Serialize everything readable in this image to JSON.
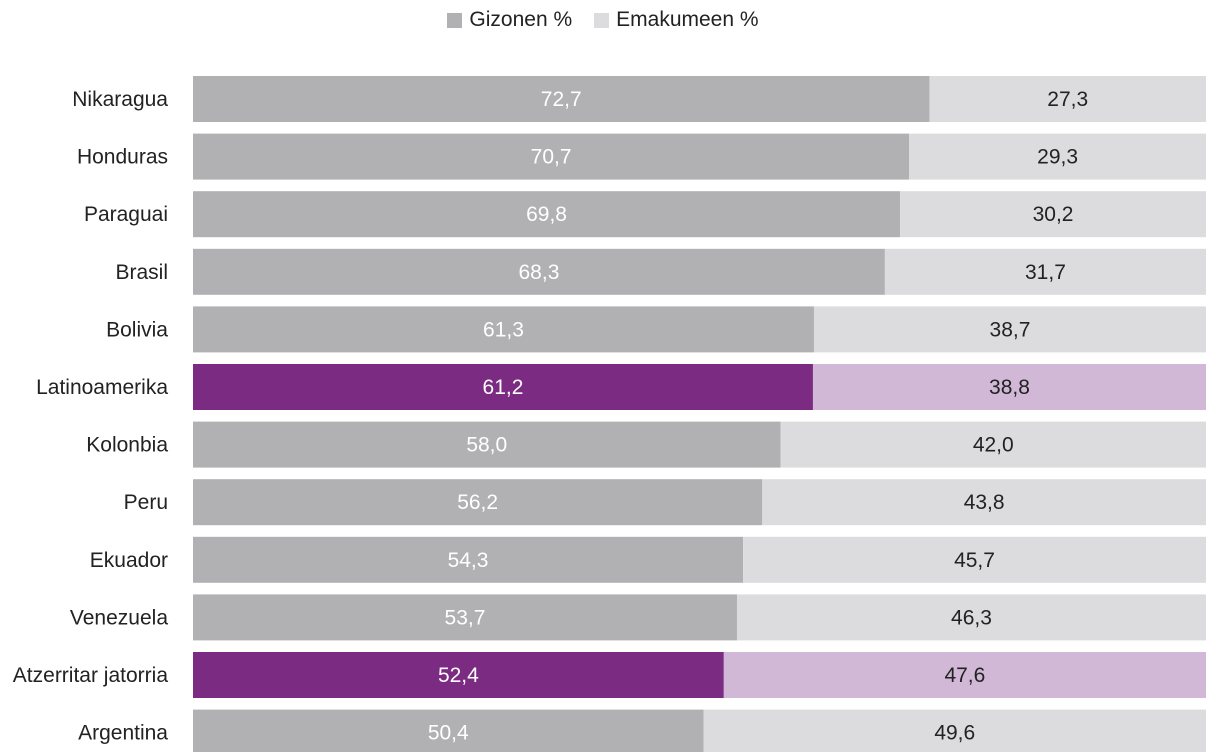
{
  "chart_data": {
    "type": "bar",
    "orientation": "horizontal",
    "stacked": true,
    "categories": [
      "Nikaragua",
      "Honduras",
      "Paraguai",
      "Brasil",
      "Bolivia",
      "Latinoamerika",
      "Kolonbia",
      "Peru",
      "Ekuador",
      "Venezuela",
      "Atzerritar jatorria",
      "Argentina"
    ],
    "series": [
      {
        "name": "Gizonen %",
        "values": [
          72.7,
          70.7,
          69.8,
          68.3,
          61.3,
          61.2,
          58.0,
          56.2,
          54.3,
          53.7,
          52.4,
          50.4
        ],
        "labels": [
          "72,7",
          "70,7",
          "69,8",
          "68,3",
          "61,3",
          "61,2",
          "58,0",
          "56,2",
          "54,3",
          "53,7",
          "52,4",
          "50,4"
        ]
      },
      {
        "name": "Emakumeen %",
        "values": [
          27.3,
          29.3,
          30.2,
          31.7,
          38.7,
          38.8,
          42.0,
          43.8,
          45.7,
          46.3,
          47.6,
          49.6
        ],
        "labels": [
          "27,3",
          "29,3",
          "30,2",
          "31,7",
          "38,7",
          "38,8",
          "42,0",
          "43,8",
          "45,7",
          "46,3",
          "47,6",
          "49,6"
        ]
      }
    ],
    "highlighted_categories": [
      "Latinoamerika",
      "Atzerritar jatorria"
    ],
    "colors": {
      "men": "#b1b1b4",
      "women": "#dcdcde",
      "men_highlight": "#7b2b82",
      "women_highlight": "#d1b8d7",
      "label_on_men": "#ffffff",
      "label_on_women": "#222222"
    },
    "xlim": [
      0,
      100
    ],
    "legend_position": "top-center",
    "grid": false
  }
}
